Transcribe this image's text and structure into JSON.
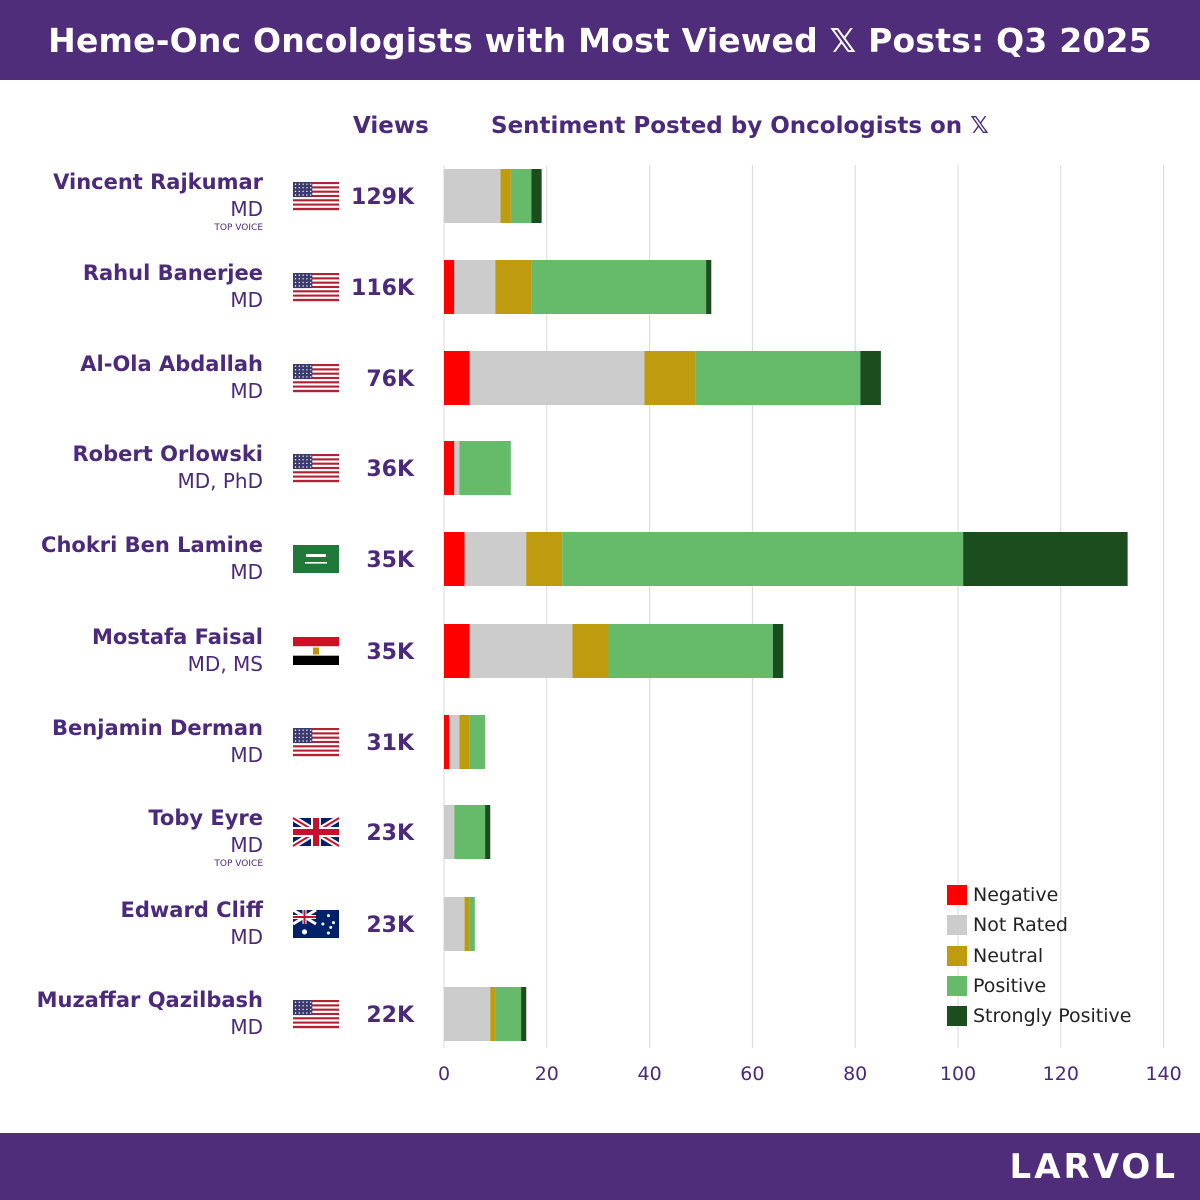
{
  "header": {
    "title": "Heme-Onc Oncologists with Most Viewed 𝕏 Posts: Q3 2025"
  },
  "columns": {
    "views": "Views",
    "sentiment": "Sentiment Posted by Oncologists on 𝕏"
  },
  "footer": {
    "logo": "LARVOL"
  },
  "colors": {
    "purple": "#4f2d7a",
    "negative": "#ff0000",
    "not_rated": "#cccccc",
    "neutral": "#bf9b0f",
    "positive": "#66bb6a",
    "strongly_positive": "#1b4d1e"
  },
  "oncologists": [
    {
      "name": "Vincent Rajkumar",
      "credentials": "MD",
      "badge": "TOP VOICE",
      "country": "US",
      "flag": "us-flag-icon",
      "views": "129K"
    },
    {
      "name": "Rahul Banerjee",
      "credentials": "MD",
      "badge": "",
      "country": "US",
      "flag": "us-flag-icon",
      "views": "116K"
    },
    {
      "name": "Al-Ola Abdallah",
      "credentials": "MD",
      "badge": "",
      "country": "US",
      "flag": "us-flag-icon",
      "views": "76K"
    },
    {
      "name": "Robert Orlowski",
      "credentials": "MD, PhD",
      "badge": "",
      "country": "US",
      "flag": "us-flag-icon",
      "views": "36K"
    },
    {
      "name": "Chokri Ben Lamine",
      "credentials": "MD",
      "badge": "",
      "country": "SA",
      "flag": "saudi-flag-icon",
      "views": "35K"
    },
    {
      "name": "Mostafa Faisal",
      "credentials": "MD, MS",
      "badge": "",
      "country": "EG",
      "flag": "egypt-flag-icon",
      "views": "35K"
    },
    {
      "name": "Benjamin Derman",
      "credentials": "MD",
      "badge": "",
      "country": "US",
      "flag": "us-flag-icon",
      "views": "31K"
    },
    {
      "name": "Toby Eyre",
      "credentials": "MD",
      "badge": "TOP VOICE",
      "country": "UK",
      "flag": "uk-flag-icon",
      "views": "23K"
    },
    {
      "name": "Edward Cliff",
      "credentials": "MD",
      "badge": "",
      "country": "AU",
      "flag": "australia-flag-icon",
      "views": "23K"
    },
    {
      "name": "Muzaffar Qazilbash",
      "credentials": "MD",
      "badge": "",
      "country": "US",
      "flag": "us-flag-icon",
      "views": "22K"
    }
  ],
  "chart_data": {
    "type": "bar",
    "orientation": "horizontal",
    "stacked": true,
    "title": "Sentiment Posted by Oncologists on 𝕏",
    "xlabel": "",
    "ylabel": "",
    "xlim": [
      0,
      140
    ],
    "xticks": [
      0,
      20,
      40,
      60,
      80,
      100,
      120,
      140
    ],
    "grid": true,
    "legend_position": "bottom-right",
    "categories": [
      "Vincent Rajkumar",
      "Rahul Banerjee",
      "Al-Ola Abdallah",
      "Robert Orlowski",
      "Chokri Ben Lamine",
      "Mostafa Faisal",
      "Benjamin Derman",
      "Toby Eyre",
      "Edward Cliff",
      "Muzaffar Qazilbash"
    ],
    "series": [
      {
        "name": "Negative",
        "color": "#ff0000",
        "values": [
          0,
          2,
          5,
          2,
          4,
          5,
          1,
          0,
          0,
          0
        ]
      },
      {
        "name": "Not Rated",
        "color": "#cccccc",
        "values": [
          11,
          8,
          34,
          1,
          12,
          20,
          2,
          2,
          4,
          9
        ]
      },
      {
        "name": "Neutral",
        "color": "#bf9b0f",
        "values": [
          2,
          7,
          10,
          0,
          7,
          7,
          2,
          0,
          1,
          1
        ]
      },
      {
        "name": "Positive",
        "color": "#66bb6a",
        "values": [
          4,
          34,
          32,
          10,
          78,
          32,
          3,
          6,
          1,
          5
        ]
      },
      {
        "name": "Strongly Positive",
        "color": "#1b4d1e",
        "values": [
          2,
          1,
          4,
          0,
          32,
          2,
          0,
          1,
          0,
          1
        ]
      }
    ]
  }
}
